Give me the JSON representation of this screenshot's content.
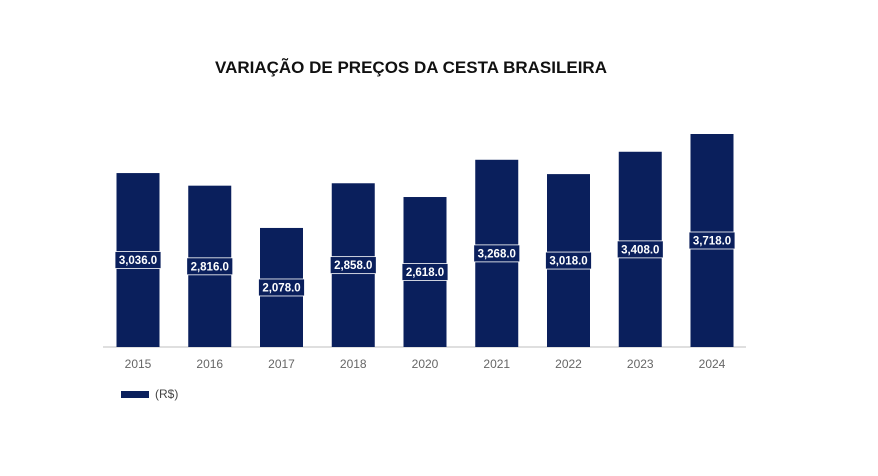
{
  "chart_data": {
    "type": "bar",
    "title": "VARIAÇÃO DE PREÇOS DA CESTA BRASILEIRA",
    "categories": [
      "2015",
      "2016",
      "2017",
      "2018",
      "2020",
      "2021",
      "2022",
      "2023",
      "2024"
    ],
    "series": [
      {
        "name": "(R$)",
        "values": [
          3036.0,
          2816.0,
          2078.0,
          2858.0,
          2618.0,
          3268.0,
          3018.0,
          3408.0,
          3718.0
        ],
        "data_labels": [
          "3,036.0",
          "2,816.0",
          "2,078.0",
          "2,858.0",
          "2,618.0",
          "3,268.0",
          "3,018.0",
          "3,408.0",
          "3,718.0"
        ]
      }
    ],
    "ylim": [
      0,
      3718
    ],
    "grid": false,
    "legend_position": "bottom-left"
  },
  "colors": {
    "bar": "#0a1f5c",
    "label_bg": "#0a1f5c",
    "label_text": "#ffffff",
    "axis": "#cccccc",
    "tick_text": "#666666"
  }
}
